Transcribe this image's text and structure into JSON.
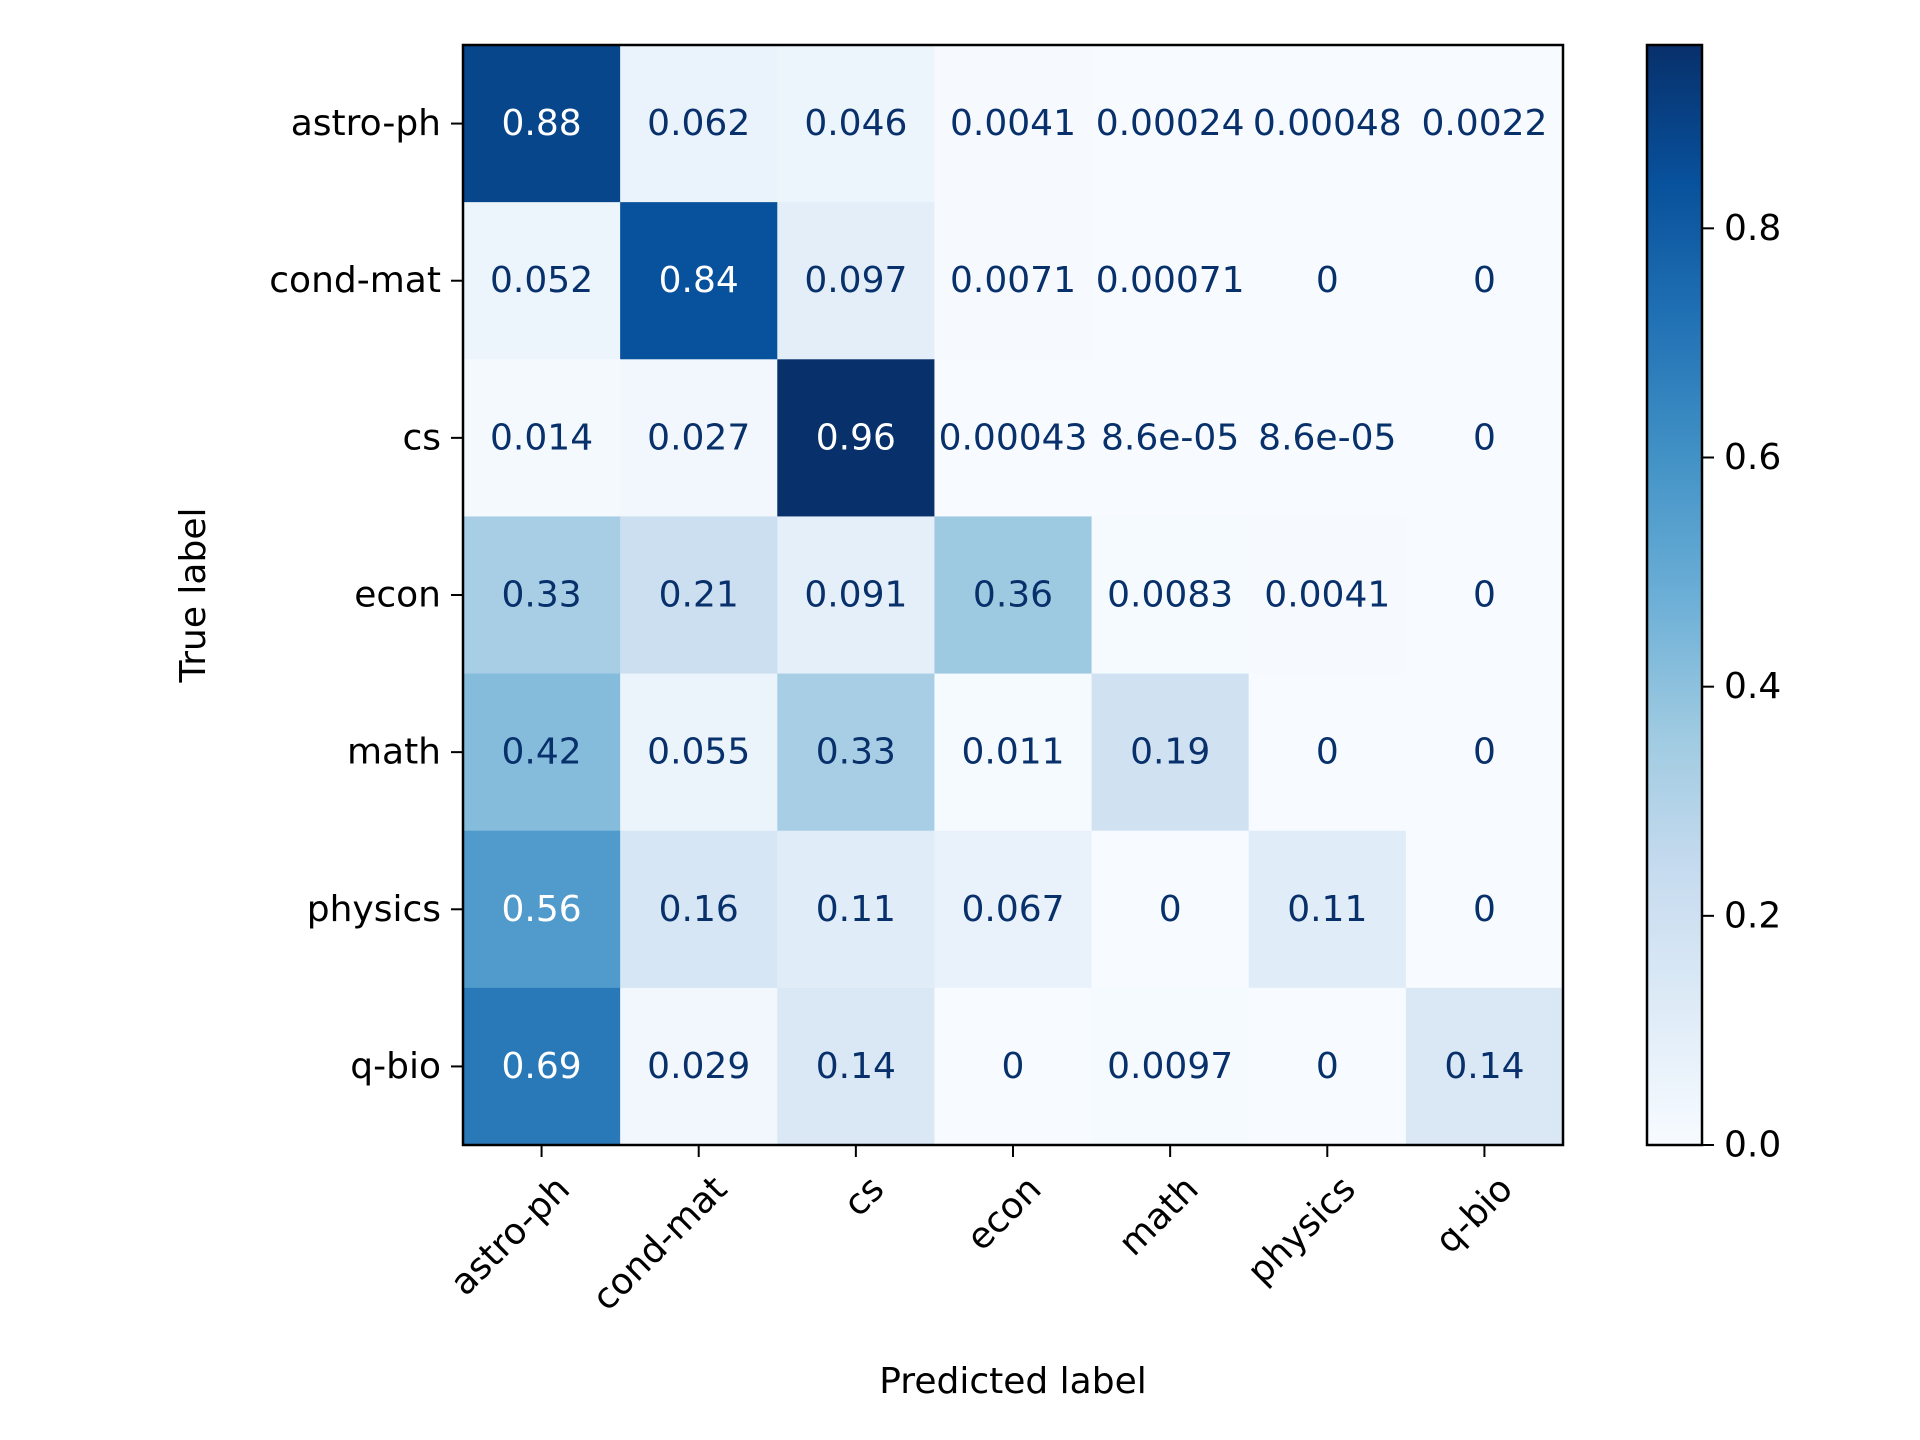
{
  "chart_data": {
    "type": "heatmap",
    "title": "",
    "xlabel": "Predicted label",
    "ylabel": "True label",
    "x_categories": [
      "astro-ph",
      "cond-mat",
      "cs",
      "econ",
      "math",
      "physics",
      "q-bio"
    ],
    "y_categories": [
      "astro-ph",
      "cond-mat",
      "cs",
      "econ",
      "math",
      "physics",
      "q-bio"
    ],
    "values": [
      [
        0.88,
        0.062,
        0.046,
        0.0041,
        0.00024,
        0.00048,
        0.0022
      ],
      [
        0.052,
        0.84,
        0.097,
        0.0071,
        0.00071,
        0,
        0
      ],
      [
        0.014,
        0.027,
        0.96,
        0.00043,
        8.6e-05,
        8.6e-05,
        0
      ],
      [
        0.33,
        0.21,
        0.091,
        0.36,
        0.0083,
        0.0041,
        0
      ],
      [
        0.42,
        0.055,
        0.33,
        0.011,
        0.19,
        0,
        0
      ],
      [
        0.56,
        0.16,
        0.11,
        0.067,
        0,
        0.11,
        0
      ],
      [
        0.69,
        0.029,
        0.14,
        0,
        0.0097,
        0,
        0.14
      ]
    ],
    "cell_labels": [
      [
        "0.88",
        "0.062",
        "0.046",
        "0.0041",
        "0.00024",
        "0.00048",
        "0.0022"
      ],
      [
        "0.052",
        "0.84",
        "0.097",
        "0.0071",
        "0.00071",
        "0",
        "0"
      ],
      [
        "0.014",
        "0.027",
        "0.96",
        "0.00043",
        "8.6e-05",
        "8.6e-05",
        "0"
      ],
      [
        "0.33",
        "0.21",
        "0.091",
        "0.36",
        "0.0083",
        "0.0041",
        "0"
      ],
      [
        "0.42",
        "0.055",
        "0.33",
        "0.011",
        "0.19",
        "0",
        "0"
      ],
      [
        "0.56",
        "0.16",
        "0.11",
        "0.067",
        "0",
        "0.11",
        "0"
      ],
      [
        "0.69",
        "0.029",
        "0.14",
        "0",
        "0.0097",
        "0",
        "0.14"
      ]
    ],
    "colormap": "Blues",
    "color_range": [
      0,
      0.96
    ],
    "colorbar": {
      "ticks": [
        0.0,
        0.2,
        0.4,
        0.6,
        0.8
      ],
      "tick_labels": [
        "0.0",
        "0.2",
        "0.4",
        "0.6",
        "0.8"
      ]
    },
    "text_colors": {
      "dark": "#08306b",
      "light": "#ffffff"
    },
    "grid": false
  }
}
